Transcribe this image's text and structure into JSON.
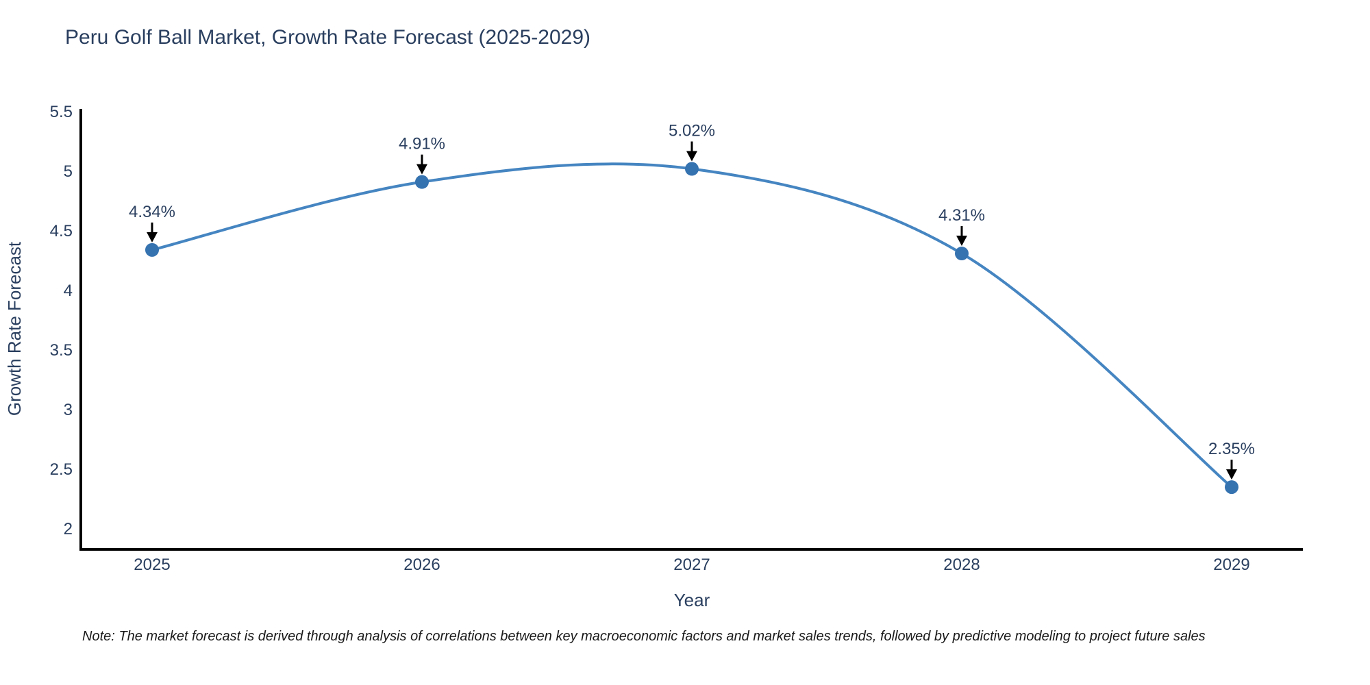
{
  "chart": {
    "title": "Peru Golf Ball Market, Growth Rate Forecast (2025-2029)",
    "note": "Note: The market forecast is derived through analysis of correlations between key macroeconomic factors and market sales trends, followed by predictive modeling to project future sales"
  },
  "chart_data": {
    "type": "line",
    "title": "Peru Golf Ball Market, Growth Rate Forecast (2025-2029)",
    "x": [
      "2025",
      "2026",
      "2027",
      "2028",
      "2029"
    ],
    "values": [
      4.34,
      4.91,
      5.02,
      4.31,
      2.35
    ],
    "point_labels": [
      "4.34%",
      "4.91%",
      "5.02%",
      "4.31%",
      "2.35%"
    ],
    "xlabel": "Year",
    "ylabel": "Growth Rate Forecast",
    "ylim": [
      2,
      5.5
    ],
    "ytick_labels": [
      "2",
      "2.5",
      "3",
      "3.5",
      "4",
      "4.5",
      "5",
      "5.5"
    ],
    "yticks": [
      2,
      2.5,
      3,
      3.5,
      4,
      4.5,
      5,
      5.5
    ],
    "line_shape": "spline",
    "grid": false,
    "legend_position": "none",
    "colors": {
      "line": "#4585c1",
      "marker": "#3572b0",
      "axis": "#000000",
      "annotation_arrow": "#000000",
      "title_text": "#2a3f5f",
      "tick_text": "#2a3f5f",
      "note_text": "#1a1a1a",
      "background": "#ffffff"
    }
  }
}
